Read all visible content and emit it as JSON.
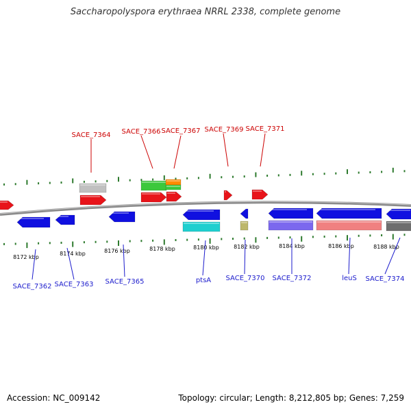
{
  "title": "Saccharopolyspora erythraea NRRL 2338, complete genome",
  "footer": {
    "accession": "Accession: NC_009142",
    "summary": "Topology: circular; Length: 8,212,805 bp; Genes: 7,259"
  },
  "colors": {
    "forward_label": "#cc0000",
    "reverse_label": "#1a1acc",
    "tick": "#2d7a2d",
    "backbone": "#8a8a8a"
  },
  "scale_labels": [
    "8172 kbp",
    "8174 kbp",
    "8176 kbp",
    "8178 kbp",
    "8180 kbp",
    "8182 kbp",
    "8184 kbp",
    "8186 kbp",
    "8188 kbp"
  ],
  "forward_gene_labels": [
    "SACE_7364",
    "SACE_7366",
    "SACE_7367",
    "SACE_7369",
    "SACE_7371"
  ],
  "reverse_gene_labels": [
    "SACE_7362",
    "SACE_7363",
    "SACE_7365",
    "ptsA",
    "SACE_7370",
    "SACE_7372",
    "leuS",
    "SACE_7374"
  ]
}
